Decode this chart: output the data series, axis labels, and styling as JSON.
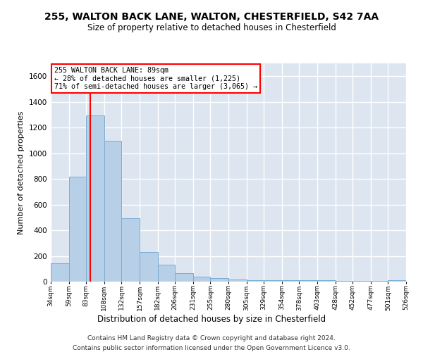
{
  "title": "255, WALTON BACK LANE, WALTON, CHESTERFIELD, S42 7AA",
  "subtitle": "Size of property relative to detached houses in Chesterfield",
  "xlabel": "Distribution of detached houses by size in Chesterfield",
  "ylabel": "Number of detached properties",
  "bar_color": "#b8cfe8",
  "bar_edge_color": "#7aadd4",
  "bin_edges": [
    34,
    59,
    83,
    108,
    132,
    157,
    182,
    206,
    231,
    255,
    280,
    305,
    329,
    354,
    378,
    403,
    428,
    452,
    477,
    501,
    526
  ],
  "bar_heights": [
    140,
    815,
    1295,
    1095,
    495,
    230,
    130,
    65,
    40,
    27,
    15,
    12,
    12,
    10,
    10,
    10,
    5,
    5,
    5,
    12
  ],
  "ylim": [
    0,
    1700
  ],
  "yticks": [
    0,
    200,
    400,
    600,
    800,
    1000,
    1200,
    1400,
    1600
  ],
  "red_line_x": 89,
  "annotation_line1": "255 WALTON BACK LANE: 89sqm",
  "annotation_line2": "← 28% of detached houses are smaller (1,225)",
  "annotation_line3": "71% of semi-detached houses are larger (3,065) →",
  "background_color": "#dde5f0",
  "grid_color": "#ffffff",
  "footer_line1": "Contains HM Land Registry data © Crown copyright and database right 2024.",
  "footer_line2": "Contains public sector information licensed under the Open Government Licence v3.0."
}
